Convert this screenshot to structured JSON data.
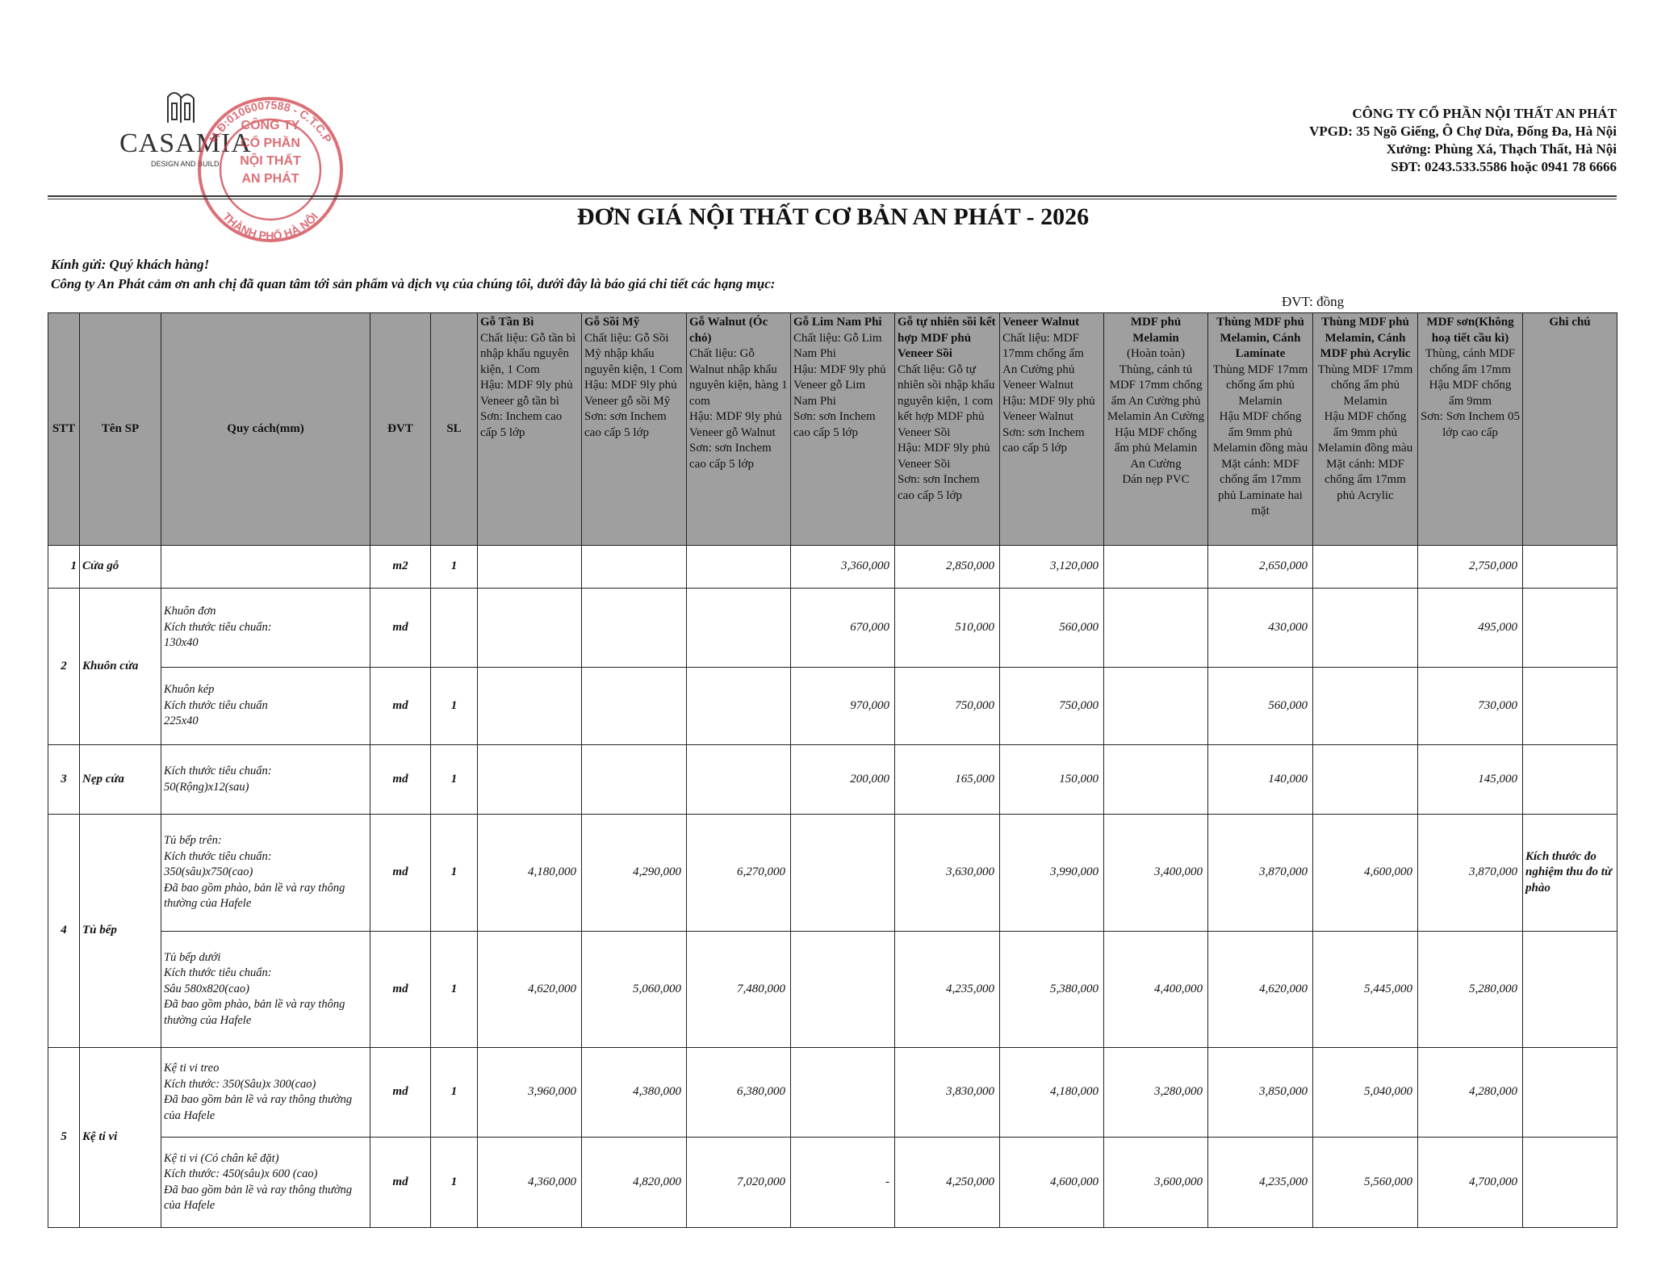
{
  "logo": {
    "brand": "CASAMIA",
    "tagline": "DESIGN AND BUILD"
  },
  "stamp": {
    "ring_top": "M.Đ:0106007588 - C.T.C.P",
    "ring_bottom": "THÀNH PHỐ HÀ NỘI",
    "lines": [
      "CÔNG TY",
      "CỔ PHẦN",
      "NỘI THẤT",
      "AN PHÁT"
    ]
  },
  "company": [
    "CÔNG TY CỔ PHẦN NỘI THẤT AN PHÁT",
    "VPGD: 35 Ngõ Giếng, Ô Chợ Dừa, Đống Đa, Hà Nội",
    "Xưởng: Phùng Xá, Thạch Thất, Hà Nội",
    "SĐT: 0243.533.5586  hoặc 0941 78 6666"
  ],
  "title": "ĐƠN GIÁ NỘI THẤT CƠ BẢN  AN PHÁT - 2026",
  "greeting": "Kính gửi: Quý khách hàng!",
  "intro": "Công ty An Phát cảm ơn anh chị đã quan tâm tới sản phẩm và dịch vụ của chúng tôi, dưới đây là báo giá chi tiết các hạng mục:",
  "unit_note": "ĐVT: đồng",
  "table": {
    "headers": [
      "STT",
      "Tên SP",
      "Quy cách(mm)",
      "ĐVT",
      "SL"
    ],
    "materials": [
      {
        "title": "Gỗ Tần Bì",
        "desc": "Chất liệu: Gỗ tần bì nhập khẩu nguyên kiện, 1 Com\nHậu: MDF 9ly phủ Veneer gỗ tần bì\nSơn: Inchem cao cấp 5 lớp"
      },
      {
        "title": "Gỗ Sồi Mỹ",
        "desc": "Chất liệu: Gỗ Sồi Mỹ nhập khẩu nguyên kiện, 1 Com\nHậu: MDF 9ly phủ Veneer gỗ sồi Mỹ\nSơn: sơn Inchem cao cấp 5 lớp"
      },
      {
        "title": "Gỗ Walnut (Óc chó)",
        "desc": "Chất liệu: Gỗ Walnut nhập khẩu nguyên kiện, hàng 1 com\nHậu: MDF 9ly phủ Veneer gỗ Walnut\nSơn: sơn Inchem cao cấp 5 lớp"
      },
      {
        "title": "Gỗ Lim Nam Phi",
        "desc": "Chất liệu: Gỗ Lim Nam Phi\nHậu: MDF 9ly phủ Veneer gỗ Lim Nam Phi\nSơn: sơn Inchem cao cấp 5 lớp"
      },
      {
        "title": "Gỗ tự nhiên sồi kết hợp MDF phủ Veneer Sồi",
        "desc": "Chất liệu: Gỗ tự nhiên sồi nhập khẩu nguyên kiện, 1 com kết hợp MDF phủ Veneer Sồi\nHậu: MDF 9ly phủ Veneer Sồi\nSơn: sơn Inchem cao cấp 5 lớp"
      },
      {
        "title": "Veneer Walnut",
        "desc": "Chất liệu: MDF 17mm chống ẩm An Cường phủ Veneer Walnut\nHậu: MDF 9ly phủ Veneer Walnut\nSơn: sơn Inchem cao cấp 5 lớp"
      },
      {
        "title": "MDF phủ Melamin",
        "desc": "(Hoàn toàn)\nThùng, cánh tủ MDF 17mm chống ẩm An Cường phủ Melamin An Cường\nHậu MDF chống ẩm phủ Melamin An Cường\nDán nẹp PVC"
      },
      {
        "title": "Thùng MDF phủ Melamin, Cánh Laminate",
        "desc": "Thùng MDF 17mm chống ẩm phủ Melamin\nHậu MDF chống ẩm 9mm phủ Melamin đồng màu\nMặt cánh: MDF chống ẩm 17mm phủ Laminate hai mặt"
      },
      {
        "title": "Thùng MDF phủ Melamin, Cánh MDF phủ Acrylic",
        "desc": "Thùng MDF 17mm chống ẩm phủ Melamin\nHậu MDF chống ẩm 9mm phủ Melamin đồng màu\nMặt cánh: MDF chống ẩm 17mm phủ Acrylic"
      },
      {
        "title": "MDF sơn(Không hoạ tiết cầu kì)",
        "desc": "Thùng, cánh MDF chống ẩm 17mm\nHậu MDF chống ẩm 9mm\nSơn: Sơn  Inchem 05 lớp cao cấp"
      }
    ],
    "note_header": "Ghi chú",
    "rows": [
      {
        "stt": 1,
        "name": "Cửa gỗ",
        "items": [
          {
            "spec": null,
            "unit": "m2",
            "qty": 1,
            "prices": [
              null,
              null,
              null,
              "3,360,000",
              "2,850,000",
              "3,120,000",
              null,
              "2,650,000",
              null,
              "2,750,000"
            ],
            "note": null
          }
        ]
      },
      {
        "stt": 2,
        "name": "Khuôn cửa",
        "items": [
          {
            "spec": "Khuôn đơn\nKích thước tiêu chuẩn:\n130x40",
            "unit": "md",
            "qty": null,
            "prices": [
              null,
              null,
              null,
              "670,000",
              "510,000",
              "560,000",
              null,
              "430,000",
              null,
              "495,000"
            ],
            "note": null
          },
          {
            "spec": "Khuôn kép\nKích thước tiêu chuẩn\n225x40",
            "unit": "md",
            "qty": 1,
            "prices": [
              null,
              null,
              null,
              "970,000",
              "750,000",
              "750,000",
              null,
              "560,000",
              null,
              "730,000"
            ],
            "note": null
          }
        ]
      },
      {
        "stt": 3,
        "name": "Nẹp cửa",
        "items": [
          {
            "spec": "Kích thước tiêu chuẩn:\n50(Rộng)x12(sau)",
            "unit": "md",
            "qty": 1,
            "prices": [
              null,
              null,
              null,
              "200,000",
              "165,000",
              "150,000",
              null,
              "140,000",
              null,
              "145,000"
            ],
            "note": null
          }
        ]
      },
      {
        "stt": 4,
        "name": "Tủ bếp",
        "items": [
          {
            "spec": "Tủ bếp trên:\nKích thước tiêu chuẩn:\n350(sâu)x750(cao)\nĐã bao gồm phào, bản lề và ray thông thường của Hafele",
            "unit": "md",
            "qty": 1,
            "prices": [
              "4,180,000",
              "4,290,000",
              "6,270,000",
              null,
              "3,630,000",
              "3,990,000",
              "3,400,000",
              "3,870,000",
              "4,600,000",
              "3,870,000"
            ],
            "note": "Kích thước đo nghiệm thu đo từ phào"
          },
          {
            "spec": "Tủ bếp dưới\nKích thước tiêu chuẩn:\nSâu 580x820(cao)\nĐã bao gồm phào, bản lề và ray thông thường của Hafele",
            "unit": "md",
            "qty": 1,
            "prices": [
              "4,620,000",
              "5,060,000",
              "7,480,000",
              null,
              "4,235,000",
              "5,380,000",
              "4,400,000",
              "4,620,000",
              "5,445,000",
              "5,280,000"
            ],
            "note": null
          }
        ]
      },
      {
        "stt": 5,
        "name": "Kệ ti vi",
        "items": [
          {
            "spec": "Kệ ti vi treo\nKích thước: 350(Sâu)x 300(cao)\nĐã bao gồm bản lề và ray thông thường của Hafele",
            "unit": "md",
            "qty": 1,
            "prices": [
              "3,960,000",
              "4,380,000",
              "6,380,000",
              null,
              "3,830,000",
              "4,180,000",
              "3,280,000",
              "3,850,000",
              "5,040,000",
              "4,280,000"
            ],
            "note": null
          },
          {
            "spec": "Kệ ti vi (Có chân kê đặt)\nKích thước: 450(sâu)x 600 (cao)\nĐã bao gồm bản lề và ray thông thường của Hafele",
            "unit": "md",
            "qty": 1,
            "prices": [
              "4,360,000",
              "4,820,000",
              "7,020,000",
              "-",
              "4,250,000",
              "4,600,000",
              "3,600,000",
              "4,235,000",
              "5,560,000",
              "4,700,000"
            ],
            "note": null
          }
        ]
      }
    ]
  }
}
